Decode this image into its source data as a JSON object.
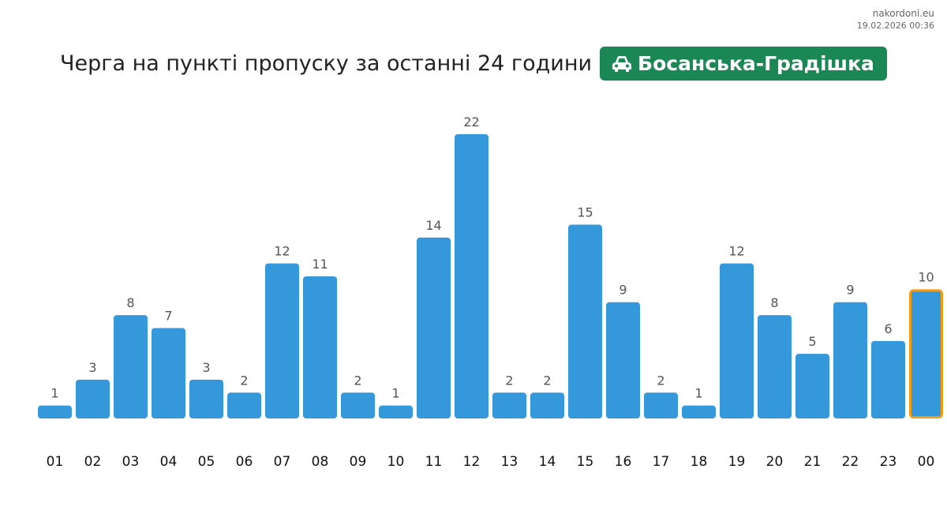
{
  "site": {
    "name": "nakordoni.eu",
    "timestamp": "19.02.2026 00:36"
  },
  "header": {
    "title": "Черга на пункті пропуску за останні 24 години",
    "checkpoint": "Босанська-Градішка",
    "icon": "car-icon"
  },
  "colors": {
    "bar": "#3498db",
    "current_outline": "#f39c12",
    "badge": "#1a8754"
  },
  "chart_data": {
    "type": "bar",
    "categories": [
      "01",
      "02",
      "03",
      "04",
      "05",
      "06",
      "07",
      "08",
      "09",
      "10",
      "11",
      "12",
      "13",
      "14",
      "15",
      "16",
      "17",
      "18",
      "19",
      "20",
      "21",
      "22",
      "23",
      "00"
    ],
    "values": [
      1,
      3,
      8,
      7,
      3,
      2,
      12,
      11,
      2,
      1,
      14,
      22,
      2,
      2,
      15,
      9,
      2,
      1,
      12,
      8,
      5,
      9,
      6,
      10
    ],
    "highlighted_category": "00",
    "title": "",
    "xlabel": "",
    "ylabel": "",
    "ylim": [
      0,
      22
    ],
    "grid": false,
    "data_labels": true
  }
}
